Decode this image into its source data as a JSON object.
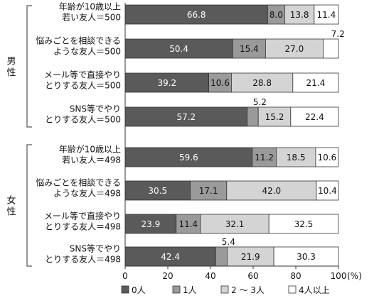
{
  "chart_data": {
    "type": "bar",
    "orientation": "horizontal",
    "stacked": true,
    "x_unit": "(%)",
    "xlim": [
      0,
      100
    ],
    "x_ticks": [
      0,
      20,
      40,
      60,
      80,
      100
    ],
    "groups": [
      {
        "label": "男性",
        "categories": [
          [
            "年齢が10歳以上",
            "若い友人＝500"
          ],
          [
            "悩みごとを相談できる",
            "ような友人＝500"
          ],
          [
            "メール等で直接やり",
            "とりする友人＝500"
          ],
          [
            "SNS等でやり",
            "とりする友人＝500"
          ]
        ]
      },
      {
        "label": "女性",
        "categories": [
          [
            "年齢が10歳以上",
            "若い友人＝498"
          ],
          [
            "悩みごとを相談できる",
            "ような友人＝498"
          ],
          [
            "メール等で直接やり",
            "とりする友人＝498"
          ],
          [
            "SNS等でやり",
            "とりする友人＝498"
          ]
        ]
      }
    ],
    "series": [
      {
        "name": "0人",
        "color": "#5a5a5a",
        "label_color": "#ffffff",
        "values": [
          66.8,
          50.4,
          39.2,
          57.2,
          59.6,
          30.5,
          23.9,
          42.4
        ]
      },
      {
        "name": "1人",
        "color": "#9a9a9a",
        "label_color": "#111111",
        "values": [
          8.0,
          15.4,
          10.6,
          5.2,
          11.2,
          17.1,
          11.4,
          5.4
        ]
      },
      {
        "name": "2～3人",
        "color": "#d4d4d4",
        "label_color": "#111111",
        "values": [
          13.8,
          27.0,
          28.8,
          15.2,
          18.5,
          42.0,
          32.1,
          21.9
        ]
      },
      {
        "name": "4人以上",
        "color": "#ffffff",
        "label_color": "#111111",
        "values": [
          11.4,
          7.2,
          21.4,
          22.4,
          10.6,
          10.4,
          32.5,
          30.3
        ]
      }
    ],
    "legend": [
      {
        "marker": "■",
        "text": "0人"
      },
      {
        "marker": "■",
        "text": "1人"
      },
      {
        "marker": "□",
        "text": "2 ～ 3人"
      },
      {
        "marker": "□",
        "text": "4人以上"
      }
    ],
    "grid": false,
    "legend_position": "bottom"
  }
}
